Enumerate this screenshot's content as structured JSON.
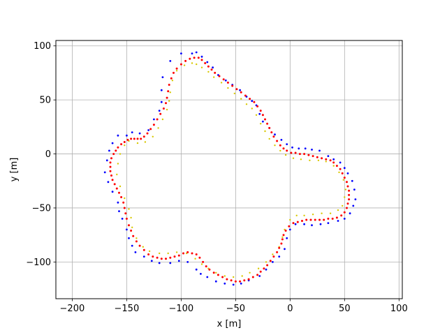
{
  "chart_data": {
    "type": "scatter",
    "title": "",
    "xlabel": "x [m]",
    "ylabel": "y [m]",
    "xlim": [
      -215,
      103
    ],
    "ylim": [
      -134,
      105
    ],
    "xticks": [
      -200,
      -150,
      -100,
      -50,
      0,
      50,
      100
    ],
    "yticks": [
      -100,
      -50,
      0,
      50,
      100
    ],
    "xtick_labels": [
      "−200",
      "−150",
      "−100",
      "−50",
      "0",
      "50",
      "100"
    ],
    "ytick_labels": [
      "−100",
      "−50",
      "0",
      "50",
      "100"
    ],
    "grid": true,
    "legend": false,
    "series": [
      {
        "color": "#0000ff",
        "marker_size": 1.4,
        "points": [
          [
            -90,
            93
          ],
          [
            -100,
            93
          ],
          [
            -110,
            86
          ],
          [
            -117,
            71
          ],
          [
            -118,
            59
          ],
          [
            -118,
            48
          ],
          [
            -120,
            40
          ],
          [
            -125,
            32
          ],
          [
            -130,
            22
          ],
          [
            -138,
            19
          ],
          [
            -145,
            20
          ],
          [
            -150,
            17
          ],
          [
            -158,
            17
          ],
          [
            -163,
            10
          ],
          [
            -166,
            3
          ],
          [
            -168,
            -6
          ],
          [
            -170,
            -17
          ],
          [
            -167,
            -26
          ],
          [
            -163,
            -35
          ],
          [
            -158,
            -45
          ],
          [
            -157,
            -53
          ],
          [
            -154,
            -60
          ],
          [
            -150,
            -70
          ],
          [
            -148,
            -78
          ],
          [
            -145,
            -85
          ],
          [
            -142,
            -91
          ],
          [
            -134,
            -95
          ],
          [
            -127,
            -99
          ],
          [
            -120,
            -101
          ],
          [
            -110,
            -101
          ],
          [
            -102,
            -99
          ],
          [
            -94,
            -100
          ],
          [
            -86,
            -107
          ],
          [
            -82,
            -111
          ],
          [
            -76,
            -114
          ],
          [
            -68,
            -118
          ],
          [
            -60,
            -120
          ],
          [
            -52,
            -121
          ],
          [
            -45,
            -120
          ],
          [
            -38,
            -117
          ],
          [
            -28,
            -113
          ],
          [
            -22,
            -107
          ],
          [
            -16,
            -100
          ],
          [
            -10,
            -95
          ],
          [
            -5,
            -88
          ],
          [
            -3,
            -78
          ],
          [
            0,
            -70
          ],
          [
            5,
            -65
          ],
          [
            13,
            -65
          ],
          [
            20,
            -66
          ],
          [
            28,
            -65
          ],
          [
            35,
            -64
          ],
          [
            44,
            -62
          ],
          [
            50,
            -60
          ],
          [
            55,
            -55
          ],
          [
            58,
            -48
          ],
          [
            60,
            -42
          ],
          [
            59,
            -33
          ],
          [
            57,
            -25
          ],
          [
            53,
            -18
          ],
          [
            50,
            -13
          ],
          [
            46,
            -8
          ],
          [
            40,
            -5
          ],
          [
            35,
            -2
          ],
          [
            27,
            3
          ],
          [
            20,
            4
          ],
          [
            14,
            5
          ],
          [
            8,
            5
          ],
          [
            2,
            6
          ],
          [
            -3,
            9
          ],
          [
            -8,
            13
          ],
          [
            -14,
            18
          ],
          [
            -19,
            24
          ],
          [
            -25,
            30
          ],
          [
            -28,
            37
          ],
          [
            -31,
            45
          ],
          [
            -35,
            49
          ],
          [
            -40,
            53
          ],
          [
            -46,
            59
          ],
          [
            -53,
            64
          ],
          [
            -59,
            68
          ],
          [
            -66,
            73
          ],
          [
            -71,
            80
          ],
          [
            -76,
            85
          ],
          [
            -81,
            90
          ],
          [
            -86,
            94
          ]
        ]
      },
      {
        "color": "#d8c800",
        "marker_size": 1.2,
        "points": [
          [
            -90,
            84
          ],
          [
            -97,
            82
          ],
          [
            -104,
            77
          ],
          [
            -108,
            68
          ],
          [
            -110,
            57
          ],
          [
            -111,
            49
          ],
          [
            -113,
            41
          ],
          [
            -117,
            32
          ],
          [
            -121,
            24
          ],
          [
            -126,
            16
          ],
          [
            -133,
            11
          ],
          [
            -140,
            10
          ],
          [
            -148,
            12
          ],
          [
            -152,
            8
          ],
          [
            -156,
            0
          ],
          [
            -158,
            -9
          ],
          [
            -159,
            -19
          ],
          [
            -156,
            -30
          ],
          [
            -152,
            -41
          ],
          [
            -148,
            -51
          ],
          [
            -146,
            -59
          ],
          [
            -145,
            -68
          ],
          [
            -141,
            -78
          ],
          [
            -135,
            -86
          ],
          [
            -129,
            -90
          ],
          [
            -120,
            -92
          ],
          [
            -112,
            -92
          ],
          [
            -104,
            -91
          ],
          [
            -95,
            -92
          ],
          [
            -87,
            -97
          ],
          [
            -81,
            -102
          ],
          [
            -75,
            -106
          ],
          [
            -68,
            -110
          ],
          [
            -60,
            -113
          ],
          [
            -52,
            -114
          ],
          [
            -44,
            -113
          ],
          [
            -37,
            -110
          ],
          [
            -29,
            -106
          ],
          [
            -22,
            -100
          ],
          [
            -16,
            -93
          ],
          [
            -10,
            -86
          ],
          [
            -7,
            -77
          ],
          [
            -5,
            -70
          ],
          [
            0,
            -61
          ],
          [
            6,
            -57
          ],
          [
            13,
            -57
          ],
          [
            21,
            -56
          ],
          [
            29,
            -55
          ],
          [
            37,
            -55
          ],
          [
            44,
            -52
          ],
          [
            48,
            -48
          ],
          [
            50,
            -40
          ],
          [
            51,
            -33
          ],
          [
            49,
            -24
          ],
          [
            45,
            -17
          ],
          [
            40,
            -11
          ],
          [
            33,
            -7
          ],
          [
            26,
            -6
          ],
          [
            18,
            -6
          ],
          [
            10,
            -5
          ],
          [
            3,
            -4
          ],
          [
            -4,
            -1
          ],
          [
            -9,
            3
          ],
          [
            -14,
            8
          ],
          [
            -19,
            14
          ],
          [
            -23,
            21
          ],
          [
            -27,
            28
          ],
          [
            -31,
            36
          ],
          [
            -35,
            42
          ],
          [
            -40,
            46
          ],
          [
            -45,
            51
          ],
          [
            -51,
            56
          ],
          [
            -57,
            61
          ],
          [
            -63,
            66
          ],
          [
            -70,
            71
          ],
          [
            -75,
            76
          ],
          [
            -81,
            80
          ],
          [
            -86,
            83
          ]
        ]
      },
      {
        "color": "#ff0000",
        "marker_size": 1.5,
        "points": [
          [
            -88,
            89
          ],
          [
            -92,
            88
          ],
          [
            -96,
            86
          ],
          [
            -100,
            83
          ],
          [
            -104,
            79
          ],
          [
            -107,
            75
          ],
          [
            -109,
            70
          ],
          [
            -111,
            64
          ],
          [
            -112,
            58
          ],
          [
            -113,
            52
          ],
          [
            -114,
            47
          ],
          [
            -116,
            42
          ],
          [
            -119,
            37
          ],
          [
            -122,
            32
          ],
          [
            -125,
            27
          ],
          [
            -128,
            23
          ],
          [
            -131,
            19
          ],
          [
            -134,
            16
          ],
          [
            -137,
            14
          ],
          [
            -140,
            14
          ],
          [
            -143,
            14
          ],
          [
            -146,
            14
          ],
          [
            -149,
            13
          ],
          [
            -152,
            11
          ],
          [
            -155,
            9
          ],
          [
            -158,
            6
          ],
          [
            -160,
            3
          ],
          [
            -162,
            0
          ],
          [
            -164,
            -4
          ],
          [
            -165,
            -8
          ],
          [
            -165,
            -12
          ],
          [
            -165,
            -16
          ],
          [
            -164,
            -20
          ],
          [
            -163,
            -24
          ],
          [
            -161,
            -28
          ],
          [
            -159,
            -32
          ],
          [
            -157,
            -36
          ],
          [
            -155,
            -40
          ],
          [
            -153,
            -45
          ],
          [
            -152,
            -50
          ],
          [
            -151,
            -55
          ],
          [
            -150,
            -60
          ],
          [
            -148,
            -66
          ],
          [
            -146,
            -71
          ],
          [
            -144,
            -76
          ],
          [
            -141,
            -81
          ],
          [
            -138,
            -85
          ],
          [
            -134,
            -89
          ],
          [
            -130,
            -93
          ],
          [
            -126,
            -95
          ],
          [
            -122,
            -96
          ],
          [
            -118,
            -97
          ],
          [
            -114,
            -97
          ],
          [
            -110,
            -96
          ],
          [
            -106,
            -95
          ],
          [
            -102,
            -94
          ],
          [
            -98,
            -92
          ],
          [
            -94,
            -91
          ],
          [
            -90,
            -92
          ],
          [
            -86,
            -93
          ],
          [
            -83,
            -96
          ],
          [
            -80,
            -100
          ],
          [
            -77,
            -104
          ],
          [
            -74,
            -107
          ],
          [
            -70,
            -110
          ],
          [
            -66,
            -112
          ],
          [
            -62,
            -114
          ],
          [
            -58,
            -116
          ],
          [
            -54,
            -117
          ],
          [
            -50,
            -118
          ],
          [
            -46,
            -118
          ],
          [
            -42,
            -117
          ],
          [
            -38,
            -116
          ],
          [
            -34,
            -114
          ],
          [
            -30,
            -112
          ],
          [
            -27,
            -109
          ],
          [
            -24,
            -106
          ],
          [
            -21,
            -103
          ],
          [
            -18,
            -99
          ],
          [
            -15,
            -95
          ],
          [
            -12,
            -91
          ],
          [
            -10,
            -87
          ],
          [
            -8,
            -83
          ],
          [
            -7,
            -79
          ],
          [
            -6,
            -75
          ],
          [
            -4,
            -71
          ],
          [
            -1,
            -67
          ],
          [
            3,
            -64
          ],
          [
            7,
            -63
          ],
          [
            11,
            -62
          ],
          [
            15,
            -61
          ],
          [
            19,
            -61
          ],
          [
            23,
            -61
          ],
          [
            27,
            -61
          ],
          [
            31,
            -61
          ],
          [
            35,
            -60
          ],
          [
            39,
            -60
          ],
          [
            43,
            -59
          ],
          [
            47,
            -57
          ],
          [
            50,
            -54
          ],
          [
            52,
            -50
          ],
          [
            53,
            -46
          ],
          [
            54,
            -42
          ],
          [
            54,
            -38
          ],
          [
            54,
            -34
          ],
          [
            53,
            -30
          ],
          [
            52,
            -26
          ],
          [
            50,
            -22
          ],
          [
            48,
            -18
          ],
          [
            46,
            -14
          ],
          [
            43,
            -11
          ],
          [
            40,
            -8
          ],
          [
            37,
            -6
          ],
          [
            33,
            -5
          ],
          [
            29,
            -4
          ],
          [
            25,
            -3
          ],
          [
            21,
            -2
          ],
          [
            17,
            -1
          ],
          [
            13,
            0
          ],
          [
            9,
            0
          ],
          [
            5,
            1
          ],
          [
            1,
            1
          ],
          [
            -3,
            3
          ],
          [
            -6,
            5
          ],
          [
            -9,
            8
          ],
          [
            -12,
            12
          ],
          [
            -15,
            16
          ],
          [
            -17,
            20
          ],
          [
            -19,
            24
          ],
          [
            -21,
            28
          ],
          [
            -23,
            32
          ],
          [
            -25,
            36
          ],
          [
            -27,
            40
          ],
          [
            -30,
            44
          ],
          [
            -33,
            48
          ],
          [
            -37,
            51
          ],
          [
            -41,
            54
          ],
          [
            -45,
            57
          ],
          [
            -49,
            60
          ],
          [
            -53,
            63
          ],
          [
            -57,
            66
          ],
          [
            -61,
            69
          ],
          [
            -65,
            72
          ],
          [
            -69,
            75
          ],
          [
            -72,
            78
          ],
          [
            -75,
            81
          ],
          [
            -78,
            84
          ],
          [
            -81,
            87
          ],
          [
            -84,
            89
          ]
        ]
      }
    ]
  }
}
